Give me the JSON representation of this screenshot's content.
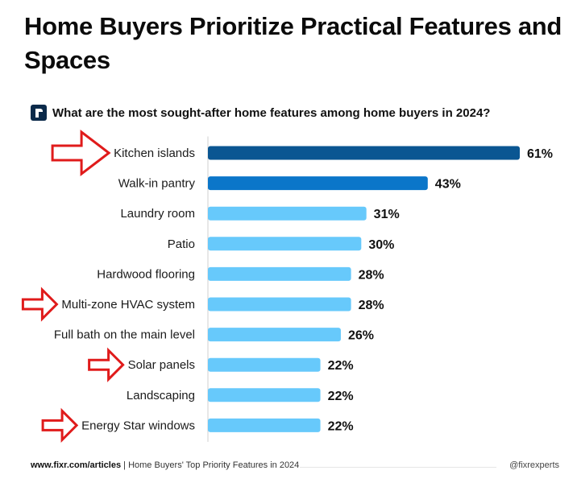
{
  "title": "Home Buyers Prioritize Practical Features and Spaces",
  "colors": {
    "dark": "#0a5692",
    "medium": "#0b76c9",
    "light": "#67c9fb",
    "arrow": "#e01b1b"
  },
  "chart_data": {
    "type": "bar",
    "orientation": "horizontal",
    "title": "What are the most sought-after home features among home buyers in 2024?",
    "categories": [
      "Kitchen islands",
      "Walk-in pantry",
      "Laundry room",
      "Patio",
      "Hardwood flooring",
      "Multi-zone HVAC system",
      "Full bath on the main level",
      "Solar panels",
      "Landscaping",
      "Energy Star windows"
    ],
    "values": [
      61,
      43,
      31,
      30,
      28,
      28,
      26,
      22,
      22,
      22
    ],
    "value_labels": [
      "61%",
      "43%",
      "31%",
      "30%",
      "28%",
      "28%",
      "26%",
      "22%",
      "22%",
      "22%"
    ],
    "highlighted": [
      "Kitchen islands",
      "Multi-zone HVAC system",
      "Solar panels",
      "Energy Star windows"
    ],
    "xlim": [
      0,
      61
    ],
    "xlabel": "",
    "ylabel": ""
  },
  "footer": {
    "source_url": "www.fixr.com/articles",
    "source_text": "Home Buyers' Top Priority Features in 2024",
    "handle": "@fixrexperts"
  }
}
